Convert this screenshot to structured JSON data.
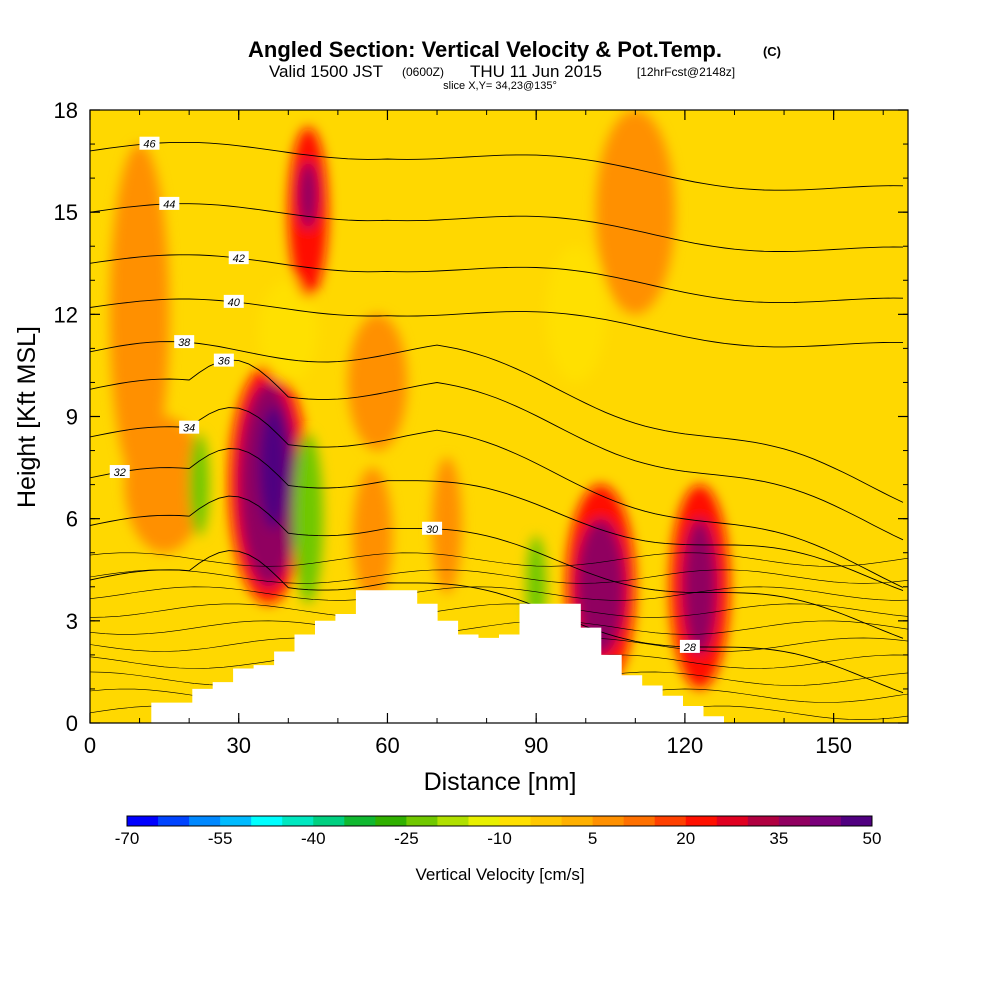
{
  "header": {
    "title": "Angled Section: Vertical Velocity & Pot.Temp.",
    "title_unit": "(C)",
    "valid_prefix": "Valid 1500 JST",
    "valid_utc": "(0600Z)",
    "valid_date": "THU 11 Jun 2015",
    "forecast_info": "[12hrFcst@2148z]",
    "slice_info": "slice X,Y= 34,23@135°"
  },
  "chart_data": {
    "type": "heatmap",
    "xlabel": "Distance [nm]",
    "ylabel": "Height [Kft MSL]",
    "xlim": [
      0,
      165
    ],
    "ylim": [
      0,
      18
    ],
    "x_ticks": [
      "0",
      "30",
      "60",
      "90",
      "120",
      "150"
    ],
    "y_ticks": [
      "0",
      "3",
      "6",
      "9",
      "12",
      "15",
      "18"
    ],
    "colorbar": {
      "label": "Vertical Velocity [cm/s]",
      "tick_labels": [
        "-70",
        "-55",
        "-40",
        "-25",
        "-10",
        "5",
        "20",
        "35",
        "50"
      ],
      "colors": [
        "#0000ff",
        "#0044ff",
        "#0088ff",
        "#00bbff",
        "#00ffff",
        "#00e8c0",
        "#00d080",
        "#10b830",
        "#30b000",
        "#70c800",
        "#b0e000",
        "#e8f000",
        "#ffe000",
        "#ffc800",
        "#ffb000",
        "#ff9000",
        "#ff7000",
        "#ff4000",
        "#ff1000",
        "#e00020",
        "#b00040",
        "#900060",
        "#7a007a",
        "#500080"
      ]
    },
    "velocity_cells": [
      {
        "x": 10,
        "y": 12,
        "rx": 6,
        "ry": 5,
        "value": 5
      },
      {
        "x": 15,
        "y": 7,
        "rx": 8,
        "ry": 2,
        "value": 5
      },
      {
        "x": 22,
        "y": 7,
        "rx": 2,
        "ry": 1.5,
        "value": -25
      },
      {
        "x": 36,
        "y": 7,
        "rx": 8,
        "ry": 3.5,
        "value": 20
      },
      {
        "x": 36,
        "y": 7,
        "rx": 6,
        "ry": 3,
        "value": 35
      },
      {
        "x": 37,
        "y": 7.5,
        "rx": 3,
        "ry": 1.8,
        "value": 50
      },
      {
        "x": 44,
        "y": 6,
        "rx": 3,
        "ry": 2.5,
        "value": -25
      },
      {
        "x": 40,
        "y": 11.5,
        "rx": 6,
        "ry": 1.5,
        "value": -10
      },
      {
        "x": 44,
        "y": 15,
        "rx": 4,
        "ry": 2.5,
        "value": 20
      },
      {
        "x": 44,
        "y": 15.5,
        "rx": 2,
        "ry": 1,
        "value": 35
      },
      {
        "x": 58,
        "y": 10,
        "rx": 6,
        "ry": 2,
        "value": 5
      },
      {
        "x": 57,
        "y": 5.5,
        "rx": 4,
        "ry": 2,
        "value": 5
      },
      {
        "x": 72,
        "y": 5.8,
        "rx": 3,
        "ry": 2,
        "value": 5
      },
      {
        "x": 90,
        "y": 4,
        "rx": 2,
        "ry": 1.5,
        "value": -25
      },
      {
        "x": 103,
        "y": 4,
        "rx": 7,
        "ry": 3,
        "value": 20
      },
      {
        "x": 103,
        "y": 4,
        "rx": 5,
        "ry": 2,
        "value": 35
      },
      {
        "x": 123,
        "y": 4,
        "rx": 6,
        "ry": 3,
        "value": 20
      },
      {
        "x": 123,
        "y": 4,
        "rx": 3.5,
        "ry": 2,
        "value": 35
      },
      {
        "x": 98,
        "y": 12,
        "rx": 6,
        "ry": 2,
        "value": -10
      },
      {
        "x": 110,
        "y": 15,
        "rx": 8,
        "ry": 3,
        "value": 5
      }
    ],
    "theta_contours": [
      {
        "value": 46,
        "label": "46",
        "label_x": 12
      },
      {
        "value": 44,
        "label": "44",
        "label_x": 16
      },
      {
        "value": 42,
        "label": "42",
        "label_x": 30
      },
      {
        "value": 40,
        "label": "40",
        "label_x": 29
      },
      {
        "value": 38,
        "label": "38",
        "label_x": 19
      },
      {
        "value": 36,
        "label": "36",
        "label_x": 27
      },
      {
        "value": 34,
        "label": "34",
        "label_x": 20
      },
      {
        "value": 32,
        "label": "32",
        "label_x": 6
      },
      {
        "value": 30,
        "label": "30",
        "label_x": 69
      },
      {
        "value": 28,
        "label": "28",
        "label_x": 121
      }
    ],
    "terrain_height_kft": [
      0,
      0,
      0,
      0.6,
      0.6,
      1.0,
      1.2,
      1.6,
      1.7,
      2.1,
      2.6,
      3.0,
      3.2,
      3.9,
      3.9,
      3.9,
      3.5,
      3.0,
      2.6,
      2.5,
      2.6,
      3.5,
      3.5,
      3.5,
      2.8,
      2.0,
      1.4,
      1.1,
      0.8,
      0.5,
      0.2,
      0,
      0,
      0,
      0,
      0,
      0,
      0,
      0,
      0,
      0
    ]
  }
}
